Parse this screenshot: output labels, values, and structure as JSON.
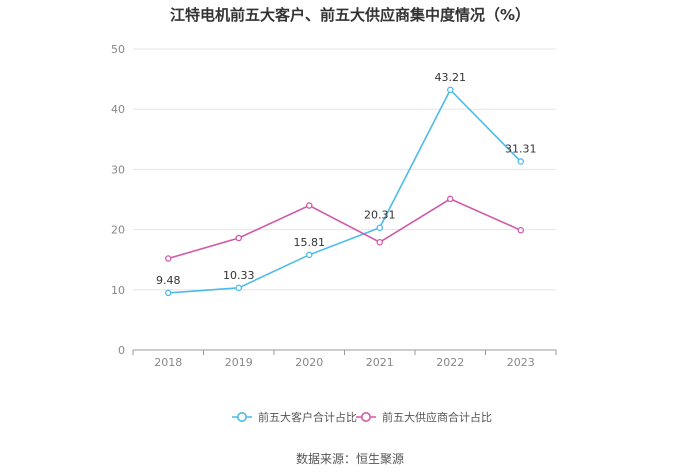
{
  "chart_data": {
    "type": "line",
    "title": "江特电机前五大客户、前五大供应商集中度情况（%）",
    "categories": [
      "2018",
      "2019",
      "2020",
      "2021",
      "2022",
      "2023"
    ],
    "ylim": [
      0,
      50
    ],
    "yticks": [
      0,
      10,
      20,
      30,
      40,
      50
    ],
    "grid": true,
    "legend_position": "bottom",
    "series": [
      {
        "name": "前五大客户合计占比",
        "color": "#4dbbea",
        "values": [
          9.48,
          10.33,
          15.81,
          20.31,
          43.21,
          31.31
        ],
        "labels": [
          "9.48",
          "10.33",
          "15.81",
          "20.31",
          "43.21",
          "31.31"
        ]
      },
      {
        "name": "前五大供应商合计占比",
        "color": "#d05aaa",
        "values": [
          15.2,
          18.6,
          24.0,
          17.9,
          25.1,
          19.9
        ],
        "labels": [
          "",
          "",
          "",
          "",
          "",
          ""
        ]
      }
    ]
  },
  "source": "数据来源：恒生聚源"
}
